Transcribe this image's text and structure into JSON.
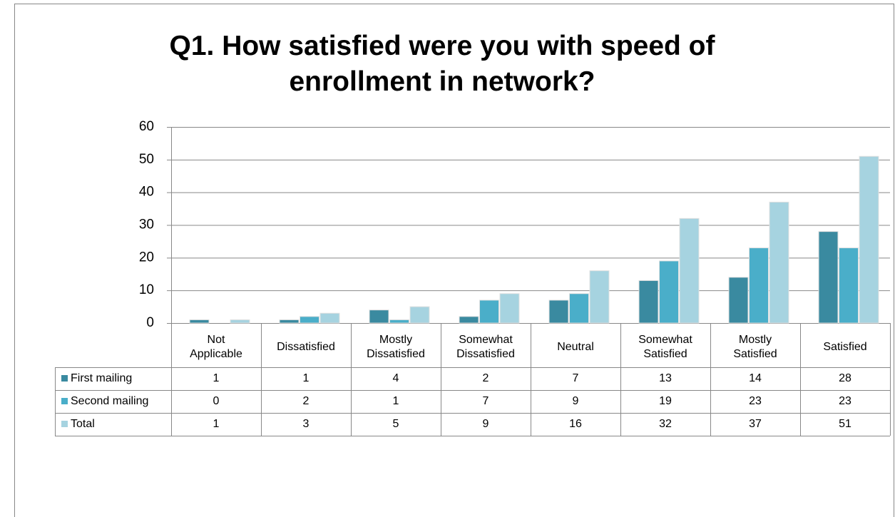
{
  "chart_data": {
    "type": "bar",
    "title": "Q1. How satisfied were you with speed of enrollment in network?",
    "categories": [
      "Not Applicable",
      "Dissatisfied",
      "Mostly Dissatisfied",
      "Somewhat Dissatisfied",
      "Neutral",
      "Somewhat Satisfied",
      "Mostly Satisfied",
      "Satisfied"
    ],
    "series": [
      {
        "name": "First mailing",
        "color": "#3a8aa0",
        "values": [
          1,
          1,
          4,
          2,
          7,
          13,
          14,
          28
        ]
      },
      {
        "name": "Second mailing",
        "color": "#4aaec9",
        "values": [
          0,
          2,
          1,
          7,
          9,
          19,
          23,
          23
        ]
      },
      {
        "name": "Total",
        "color": "#a6d3e0",
        "values": [
          1,
          3,
          5,
          9,
          16,
          32,
          37,
          51
        ]
      }
    ],
    "ylim": [
      0,
      60
    ],
    "yticks": [
      0,
      10,
      20,
      30,
      40,
      50,
      60
    ],
    "grid": true
  }
}
